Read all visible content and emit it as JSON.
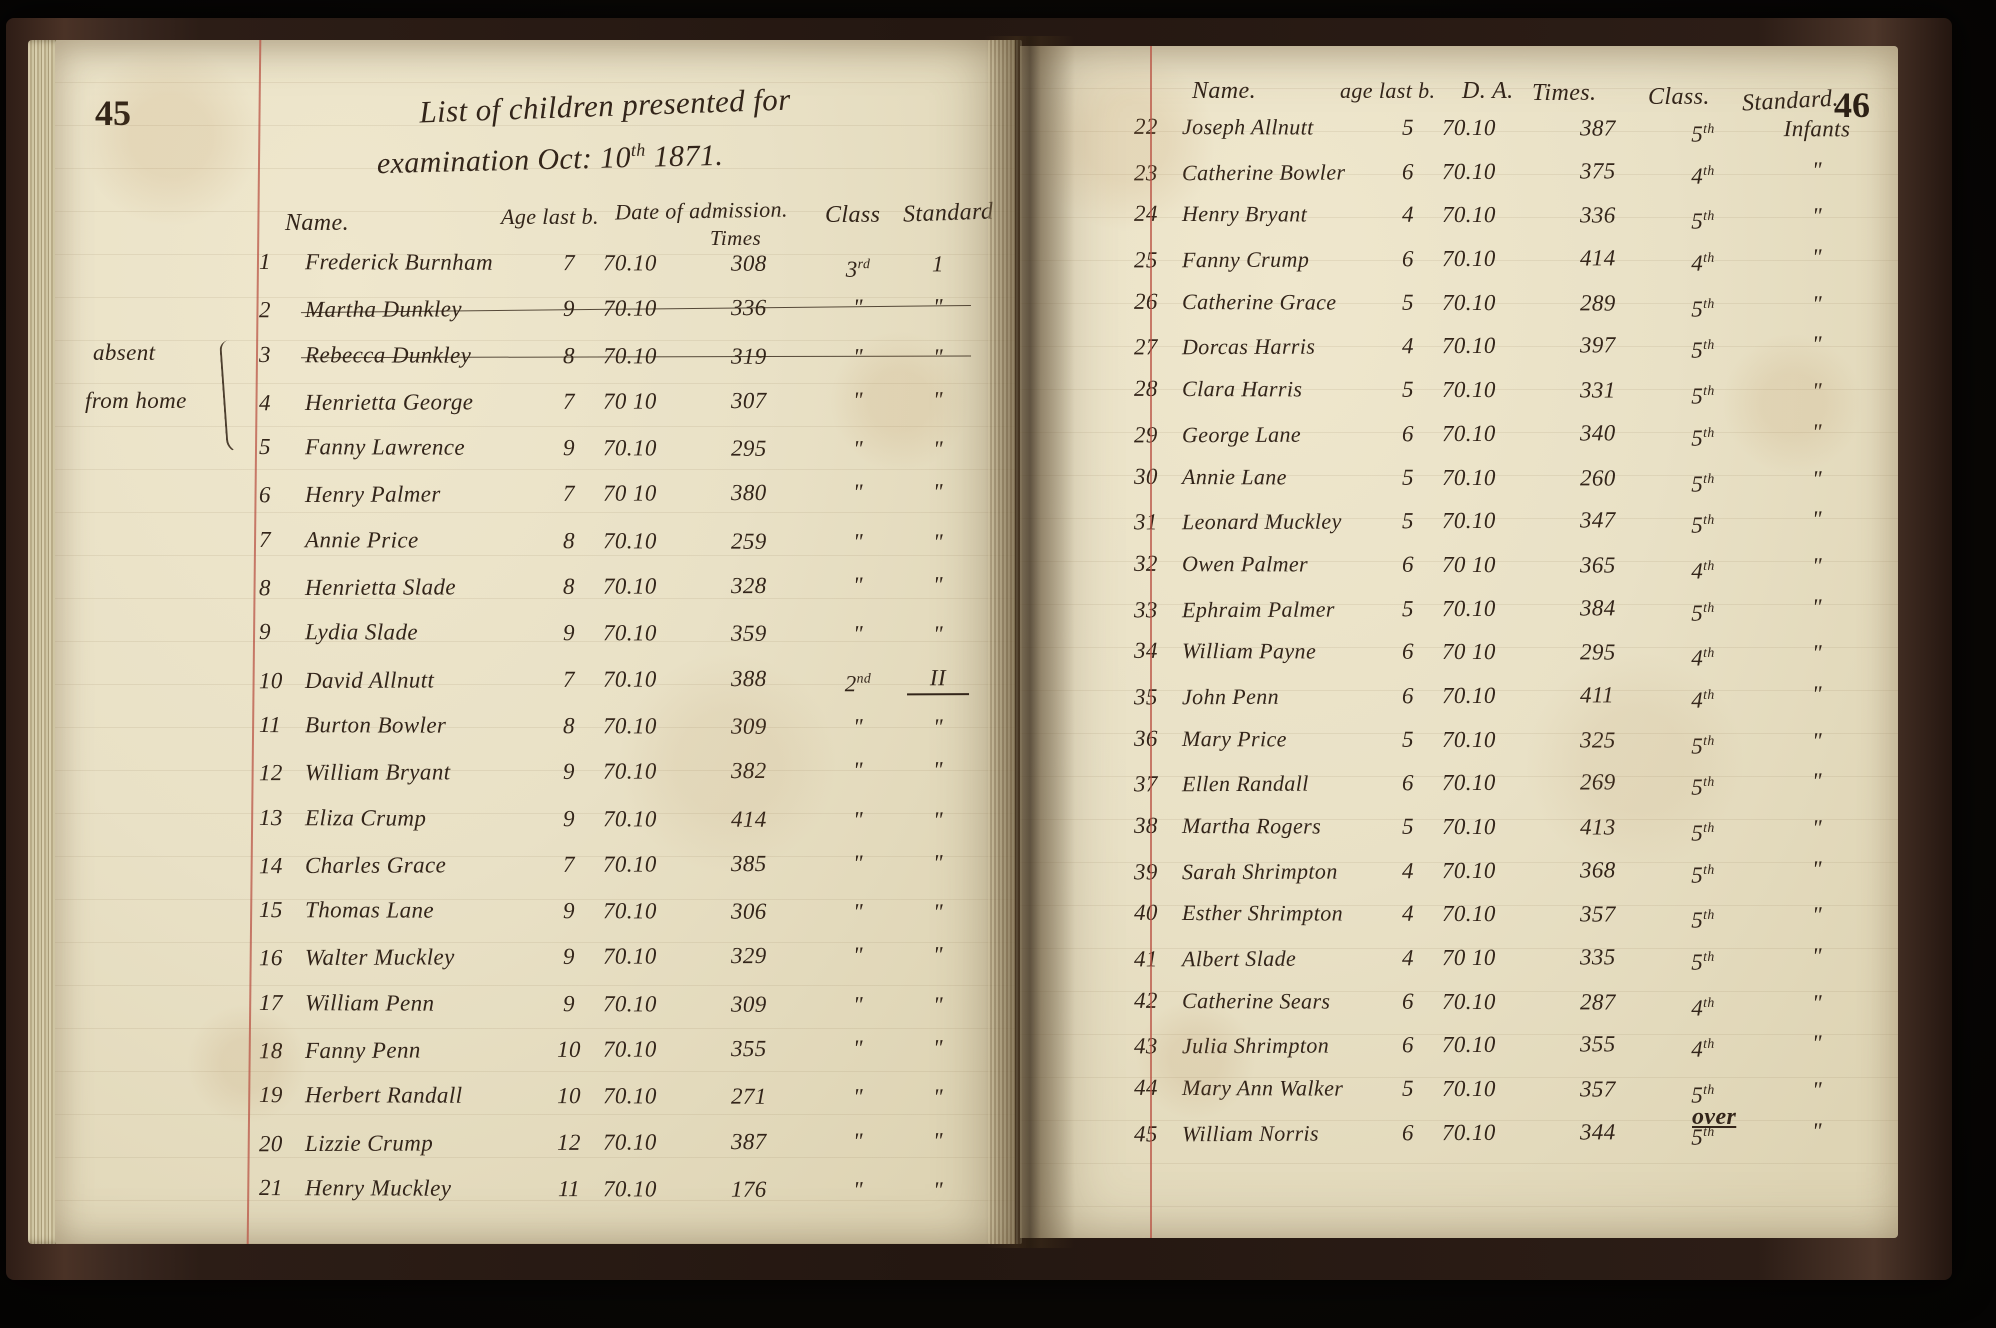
{
  "document_type": "handwritten ledger photograph",
  "title": {
    "line1": "List of children presented for",
    "line2_pre": "examination Oct: 10",
    "line2_sup": "th",
    "line2_post": " 1871."
  },
  "colors": {
    "background": "#0a0806",
    "book_cover": "#3a2820",
    "page": "#e9e1c6",
    "ink": "#33251a",
    "red_margin_line": "#ba544a"
  },
  "left_page": {
    "page_number": "45",
    "margin_note_line1": "absent",
    "margin_note_line2": "from home",
    "headers": {
      "name": "Name.",
      "age": "Age last b.",
      "date": "Date of admission.",
      "times": "Times",
      "class": "Class",
      "standard": "Standard"
    },
    "rows": [
      {
        "num": "1",
        "name": "Frederick Burnham",
        "age": "7",
        "date": "70.10",
        "times": "308",
        "class": "3rd",
        "standard": "1"
      },
      {
        "num": "2",
        "name": "Martha Dunkley",
        "age": "9",
        "date": "70.10",
        "times": "336",
        "class": "\"",
        "standard": "\"",
        "struck": true
      },
      {
        "num": "3",
        "name": "Rebecca Dunkley",
        "age": "8",
        "date": "70.10",
        "times": "319",
        "class": "\"",
        "standard": "\"",
        "struck": true
      },
      {
        "num": "4",
        "name": "Henrietta George",
        "age": "7",
        "date": "70 10",
        "times": "307",
        "class": "\"",
        "standard": "\""
      },
      {
        "num": "5",
        "name": "Fanny Lawrence",
        "age": "9",
        "date": "70.10",
        "times": "295",
        "class": "\"",
        "standard": "\""
      },
      {
        "num": "6",
        "name": "Henry Palmer",
        "age": "7",
        "date": "70 10",
        "times": "380",
        "class": "\"",
        "standard": "\""
      },
      {
        "num": "7",
        "name": "Annie Price",
        "age": "8",
        "date": "70.10",
        "times": "259",
        "class": "\"",
        "standard": "\""
      },
      {
        "num": "8",
        "name": "Henrietta Slade",
        "age": "8",
        "date": "70.10",
        "times": "328",
        "class": "\"",
        "standard": "\""
      },
      {
        "num": "9",
        "name": "Lydia Slade",
        "age": "9",
        "date": "70.10",
        "times": "359",
        "class": "\"",
        "standard": "\""
      },
      {
        "num": "10",
        "name": "David Allnutt",
        "age": "7",
        "date": "70.10",
        "times": "388",
        "class": "2nd",
        "standard": "II",
        "standard_underline": true
      },
      {
        "num": "11",
        "name": "Burton Bowler",
        "age": "8",
        "date": "70.10",
        "times": "309",
        "class": "\"",
        "standard": "\""
      },
      {
        "num": "12",
        "name": "William Bryant",
        "age": "9",
        "date": "70.10",
        "times": "382",
        "class": "\"",
        "standard": "\""
      },
      {
        "num": "13",
        "name": "Eliza Crump",
        "age": "9",
        "date": "70.10",
        "times": "414",
        "class": "\"",
        "standard": "\""
      },
      {
        "num": "14",
        "name": "Charles Grace",
        "age": "7",
        "date": "70.10",
        "times": "385",
        "class": "\"",
        "standard": "\""
      },
      {
        "num": "15",
        "name": "Thomas Lane",
        "age": "9",
        "date": "70.10",
        "times": "306",
        "class": "\"",
        "standard": "\""
      },
      {
        "num": "16",
        "name": "Walter Muckley",
        "age": "9",
        "date": "70.10",
        "times": "329",
        "class": "\"",
        "standard": "\""
      },
      {
        "num": "17",
        "name": "William Penn",
        "age": "9",
        "date": "70.10",
        "times": "309",
        "class": "\"",
        "standard": "\""
      },
      {
        "num": "18",
        "name": "Fanny Penn",
        "age": "10",
        "date": "70.10",
        "times": "355",
        "class": "\"",
        "standard": "\""
      },
      {
        "num": "19",
        "name": "Herbert Randall",
        "age": "10",
        "date": "70.10",
        "times": "271",
        "class": "\"",
        "standard": "\""
      },
      {
        "num": "20",
        "name": "Lizzie Crump",
        "age": "12",
        "date": "70.10",
        "times": "387",
        "class": "\"",
        "standard": "\""
      },
      {
        "num": "21",
        "name": "Henry Muckley",
        "age": "11",
        "date": "70.10",
        "times": "176",
        "class": "\"",
        "standard": "\""
      }
    ]
  },
  "right_page": {
    "page_number": "46",
    "over_note": "over",
    "headers": {
      "name": "Name.",
      "age": "age last b.",
      "date": "D. A.",
      "times": "Times.",
      "class": "Class.",
      "standard": "Standard."
    },
    "rows": [
      {
        "num": "22",
        "name": "Joseph Allnutt",
        "age": "5",
        "date": "70.10",
        "times": "387",
        "class": "5th",
        "standard": "Infants"
      },
      {
        "num": "23",
        "name": "Catherine Bowler",
        "age": "6",
        "date": "70.10",
        "times": "375",
        "class": "4th",
        "standard": "\""
      },
      {
        "num": "24",
        "name": "Henry Bryant",
        "age": "4",
        "date": "70.10",
        "times": "336",
        "class": "5th",
        "standard": "\""
      },
      {
        "num": "25",
        "name": "Fanny Crump",
        "age": "6",
        "date": "70.10",
        "times": "414",
        "class": "4th",
        "standard": "\""
      },
      {
        "num": "26",
        "name": "Catherine Grace",
        "age": "5",
        "date": "70.10",
        "times": "289",
        "class": "5th",
        "standard": "\""
      },
      {
        "num": "27",
        "name": "Dorcas Harris",
        "age": "4",
        "date": "70.10",
        "times": "397",
        "class": "5th",
        "standard": "\""
      },
      {
        "num": "28",
        "name": "Clara Harris",
        "age": "5",
        "date": "70.10",
        "times": "331",
        "class": "5th",
        "standard": "\""
      },
      {
        "num": "29",
        "name": "George Lane",
        "age": "6",
        "date": "70.10",
        "times": "340",
        "class": "5th",
        "standard": "\""
      },
      {
        "num": "30",
        "name": "Annie Lane",
        "age": "5",
        "date": "70.10",
        "times": "260",
        "class": "5th",
        "standard": "\""
      },
      {
        "num": "31",
        "name": "Leonard Muckley",
        "age": "5",
        "date": "70.10",
        "times": "347",
        "class": "5th",
        "standard": "\""
      },
      {
        "num": "32",
        "name": "Owen Palmer",
        "age": "6",
        "date": "70 10",
        "times": "365",
        "class": "4th",
        "standard": "\""
      },
      {
        "num": "33",
        "name": "Ephraim Palmer",
        "age": "5",
        "date": "70.10",
        "times": "384",
        "class": "5th",
        "standard": "\""
      },
      {
        "num": "34",
        "name": "William Payne",
        "age": "6",
        "date": "70 10",
        "times": "295",
        "class": "4th",
        "standard": "\""
      },
      {
        "num": "35",
        "name": "John Penn",
        "age": "6",
        "date": "70.10",
        "times": "411",
        "class": "4th",
        "standard": "\""
      },
      {
        "num": "36",
        "name": "Mary Price",
        "age": "5",
        "date": "70.10",
        "times": "325",
        "class": "5th",
        "standard": "\""
      },
      {
        "num": "37",
        "name": "Ellen Randall",
        "age": "6",
        "date": "70.10",
        "times": "269",
        "class": "5th",
        "standard": "\""
      },
      {
        "num": "38",
        "name": "Martha Rogers",
        "age": "5",
        "date": "70.10",
        "times": "413",
        "class": "5th",
        "standard": "\""
      },
      {
        "num": "39",
        "name": "Sarah Shrimpton",
        "age": "4",
        "date": "70.10",
        "times": "368",
        "class": "5th",
        "standard": "\""
      },
      {
        "num": "40",
        "name": "Esther Shrimpton",
        "age": "4",
        "date": "70.10",
        "times": "357",
        "class": "5th",
        "standard": "\""
      },
      {
        "num": "41",
        "name": "Albert Slade",
        "age": "4",
        "date": "70 10",
        "times": "335",
        "class": "5th",
        "standard": "\""
      },
      {
        "num": "42",
        "name": "Catherine Sears",
        "age": "6",
        "date": "70.10",
        "times": "287",
        "class": "4th",
        "standard": "\""
      },
      {
        "num": "43",
        "name": "Julia Shrimpton",
        "age": "6",
        "date": "70.10",
        "times": "355",
        "class": "4th",
        "standard": "\""
      },
      {
        "num": "44",
        "name": "Mary Ann Walker",
        "age": "5",
        "date": "70.10",
        "times": "357",
        "class": "5th",
        "standard": "\""
      },
      {
        "num": "45",
        "name": "William Norris",
        "age": "6",
        "date": "70.10",
        "times": "344",
        "class": "5th",
        "standard": "\""
      }
    ]
  }
}
